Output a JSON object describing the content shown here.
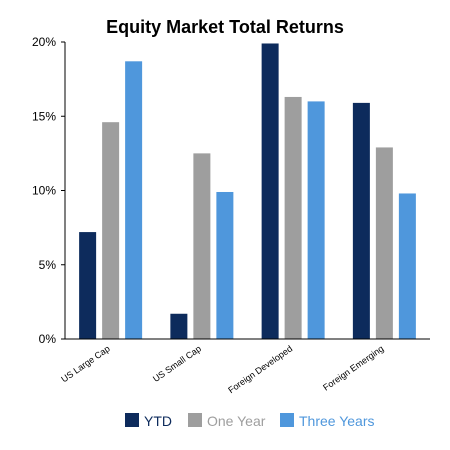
{
  "chart_data": {
    "type": "bar",
    "title": "Equity Market Total Returns",
    "xlabel": "",
    "ylabel": "",
    "categories": [
      "US Large Cap",
      "US Small Cap",
      "Foreign Developed",
      "Foreign Emerging"
    ],
    "series": [
      {
        "name": "YTD",
        "values": [
          7.2,
          1.7,
          19.9,
          15.9
        ],
        "color": "#0d2b5c"
      },
      {
        "name": "One Year",
        "values": [
          14.6,
          12.5,
          16.3,
          12.9
        ],
        "color": "#9e9e9e"
      },
      {
        "name": "Three Years",
        "values": [
          18.7,
          9.9,
          16.0,
          9.8
        ],
        "color": "#4f97dc"
      }
    ],
    "ylim": [
      0,
      20
    ],
    "yticks": [
      0,
      5,
      10,
      15,
      20
    ],
    "ytick_labels": [
      "0%",
      "5%",
      "10%",
      "15%",
      "20%"
    ],
    "grid": false,
    "legend_position": "bottom"
  }
}
